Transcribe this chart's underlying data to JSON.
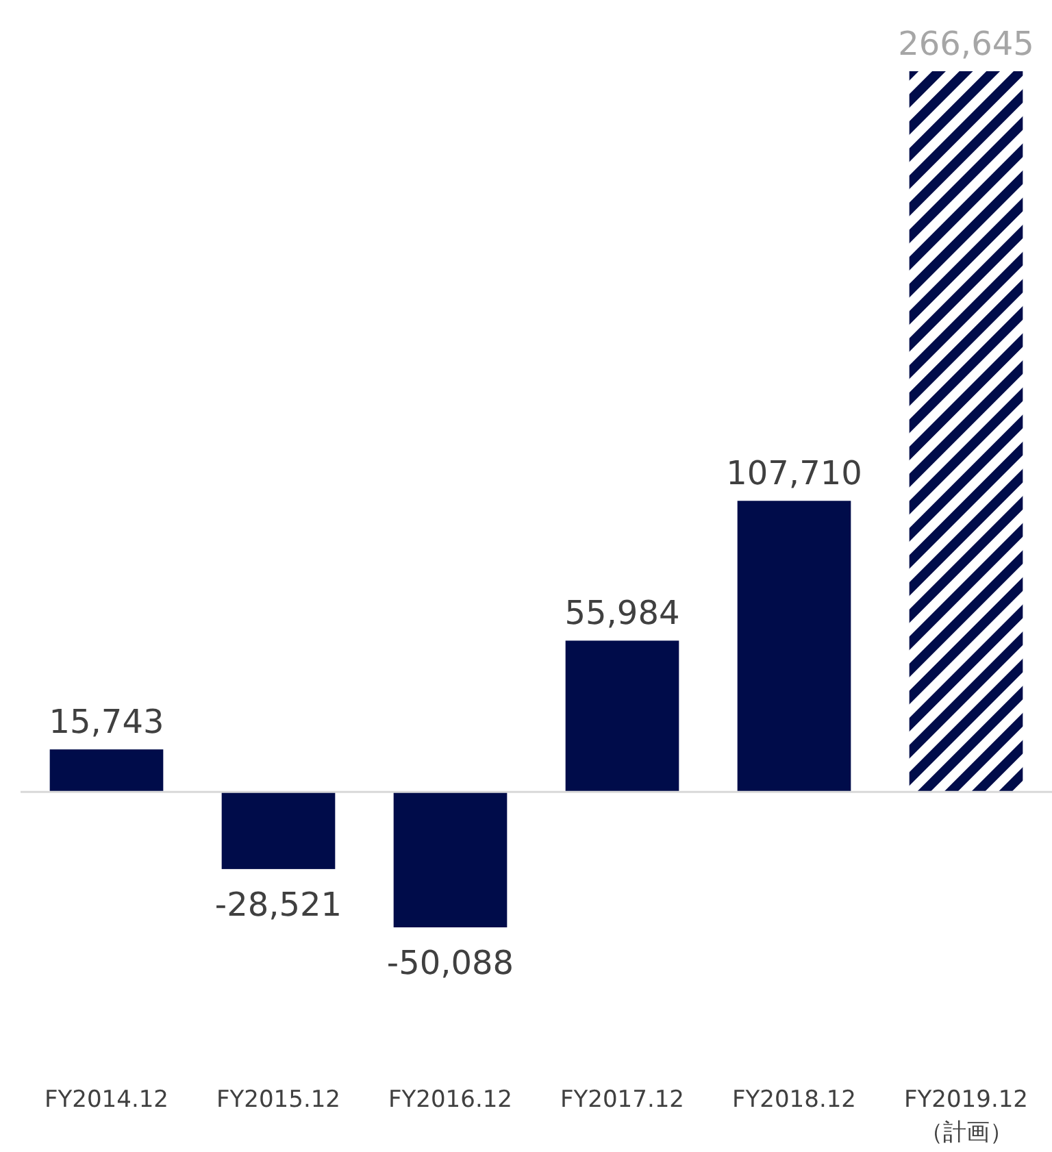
{
  "chart_data": {
    "type": "bar",
    "categories": [
      "FY2014.12",
      "FY2015.12",
      "FY2016.12",
      "FY2017.12",
      "FY2018.12",
      "FY2019.12\n（計画）"
    ],
    "values": [
      15743,
      -28521,
      -50088,
      55984,
      107710,
      266645
    ],
    "value_labels": [
      "15,743",
      "-28,521",
      "-50,088",
      "55,984",
      "107,710",
      "266,645"
    ],
    "color": "#000c4a",
    "tick_labels": "x"
  }
}
